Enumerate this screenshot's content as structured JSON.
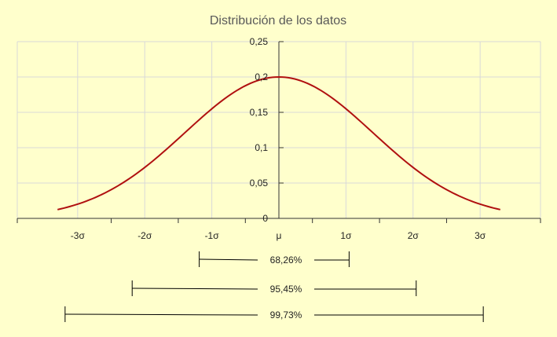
{
  "colors": {
    "background": "#ffffcc",
    "curve": "#b01010",
    "grid": "#d9d9d9",
    "axis": "#333333",
    "text": "#222222",
    "title": "#595959"
  },
  "chart_data": {
    "type": "line",
    "title": "Distribución de los datos",
    "xlabel": "",
    "ylabel": "",
    "xlim": [
      -3.9,
      3.9
    ],
    "ylim": [
      0,
      0.25
    ],
    "grid": true,
    "y_ticks": [
      {
        "value": 0,
        "label": "0"
      },
      {
        "value": 0.05,
        "label": "0,05"
      },
      {
        "value": 0.1,
        "label": "0,1"
      },
      {
        "value": 0.15,
        "label": "0,15"
      },
      {
        "value": 0.2,
        "label": "0,2"
      },
      {
        "value": 0.25,
        "label": "0,25"
      }
    ],
    "x_ticks": [
      {
        "value": -3,
        "label": "-3σ"
      },
      {
        "value": -2,
        "label": "-2σ"
      },
      {
        "value": -1,
        "label": "-1σ"
      },
      {
        "value": 0,
        "label": "μ"
      },
      {
        "value": 1,
        "label": "1σ"
      },
      {
        "value": 2,
        "label": "2σ"
      },
      {
        "value": 3,
        "label": "3σ"
      }
    ],
    "series": [
      {
        "x": [
          -3.3,
          -3.0,
          -2.7,
          -2.4,
          -2.1,
          -1.8,
          -1.5,
          -1.2,
          -0.9,
          -0.6,
          -0.3,
          0.0,
          0.3,
          0.6,
          0.9,
          1.2,
          1.5,
          1.8,
          2.1,
          2.4,
          2.7,
          3.0,
          3.3
        ],
        "y": [
          0.009,
          0.015,
          0.024,
          0.036,
          0.05,
          0.067,
          0.087,
          0.11,
          0.133,
          0.158,
          0.185,
          0.2,
          0.185,
          0.158,
          0.133,
          0.11,
          0.087,
          0.067,
          0.05,
          0.036,
          0.024,
          0.015,
          0.009
        ]
      }
    ],
    "ranges": [
      {
        "from": -1,
        "to": 1,
        "label": "68,26%"
      },
      {
        "from": -2,
        "to": 2,
        "label": "95,45%"
      },
      {
        "from": -3,
        "to": 3,
        "label": "99,73%"
      }
    ]
  }
}
